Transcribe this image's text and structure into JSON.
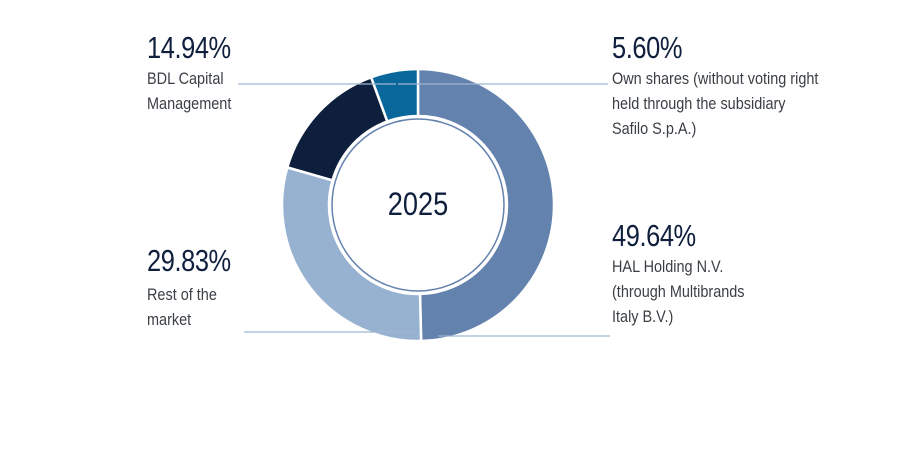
{
  "chart_data": {
    "type": "pie",
    "center_label": "2025",
    "slices": [
      {
        "percent": "49.64%",
        "value": 49.64,
        "label": "HAL Holding N.V.\n(through Multibrands\nItaly B.V.)",
        "color": "#6482ae"
      },
      {
        "percent": "29.83%",
        "value": 29.83,
        "label": "Rest of the\nmarket",
        "color": "#97b2d1"
      },
      {
        "percent": "14.94%",
        "value": 14.94,
        "label": "BDL Capital\nManagement",
        "color": "#0e1f3d"
      },
      {
        "percent": "5.60%",
        "value": 5.6,
        "label": "Own shares (without voting right\nheld through the subsidiary\nSafilo S.p.A.)",
        "color": "#09679b"
      }
    ]
  }
}
